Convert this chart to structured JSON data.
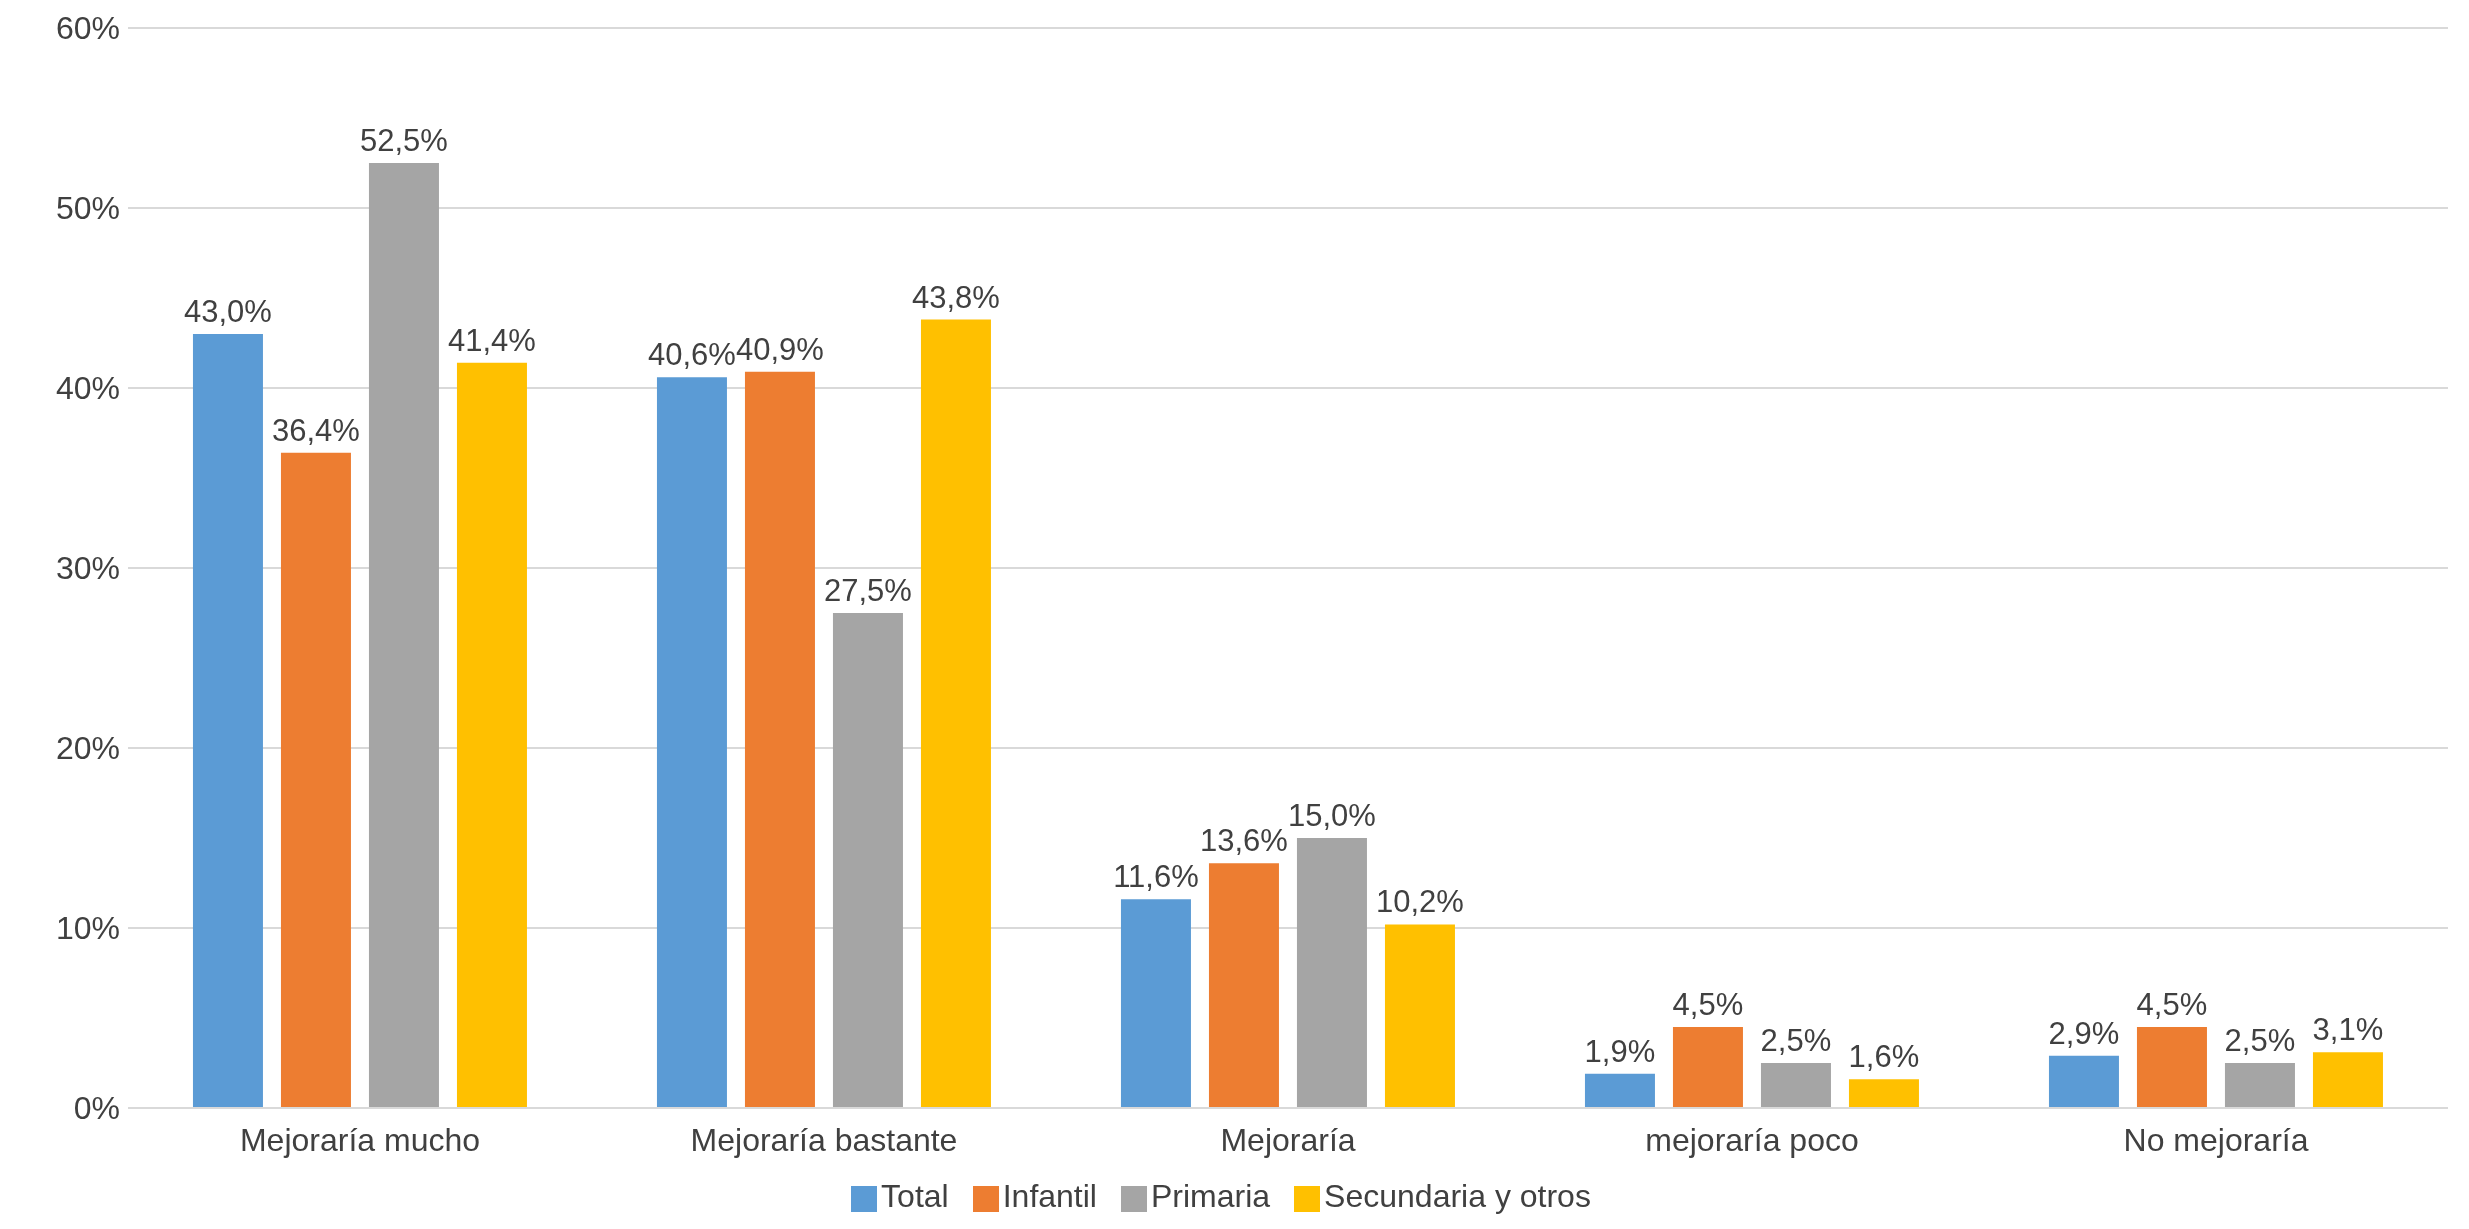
{
  "chart_data": {
    "type": "bar",
    "categories": [
      "Mejoraría mucho",
      "Mejoraría bastante",
      "Mejoraría",
      "mejoraría poco",
      "No mejoraría"
    ],
    "series": [
      {
        "name": "Total",
        "color": "#5b9bd5",
        "values": [
          43.0,
          40.6,
          11.6,
          1.9,
          2.9
        ],
        "value_labels": [
          "43,0%",
          "40,6%",
          "11,6%",
          "1,9%",
          "2,9%"
        ]
      },
      {
        "name": "Infantil",
        "color": "#ed7d31",
        "values": [
          36.4,
          40.9,
          13.6,
          4.5,
          4.5
        ],
        "value_labels": [
          "36,4%",
          "40,9%",
          "13,6%",
          "4,5%",
          "4,5%"
        ]
      },
      {
        "name": "Primaria",
        "color": "#a5a5a5",
        "values": [
          52.5,
          27.5,
          15.0,
          2.5,
          2.5
        ],
        "value_labels": [
          "52,5%",
          "27,5%",
          "15,0%",
          "2,5%",
          "2,5%"
        ]
      },
      {
        "name": "Secundaria y otros",
        "color": "#ffc000",
        "values": [
          41.4,
          43.8,
          10.2,
          1.6,
          3.1
        ],
        "value_labels": [
          "41,4%",
          "43,8%",
          "10,2%",
          "1,6%",
          "3,1%"
        ]
      }
    ],
    "ylim": [
      0,
      60
    ],
    "yticks": [
      {
        "value": 0,
        "label": "0%"
      },
      {
        "value": 10,
        "label": "10%"
      },
      {
        "value": 20,
        "label": "20%"
      },
      {
        "value": 30,
        "label": "30%"
      },
      {
        "value": 40,
        "label": "40%"
      },
      {
        "value": 50,
        "label": "50%"
      },
      {
        "value": 60,
        "label": "60%"
      }
    ],
    "grid": "y",
    "legend": "bottom"
  }
}
